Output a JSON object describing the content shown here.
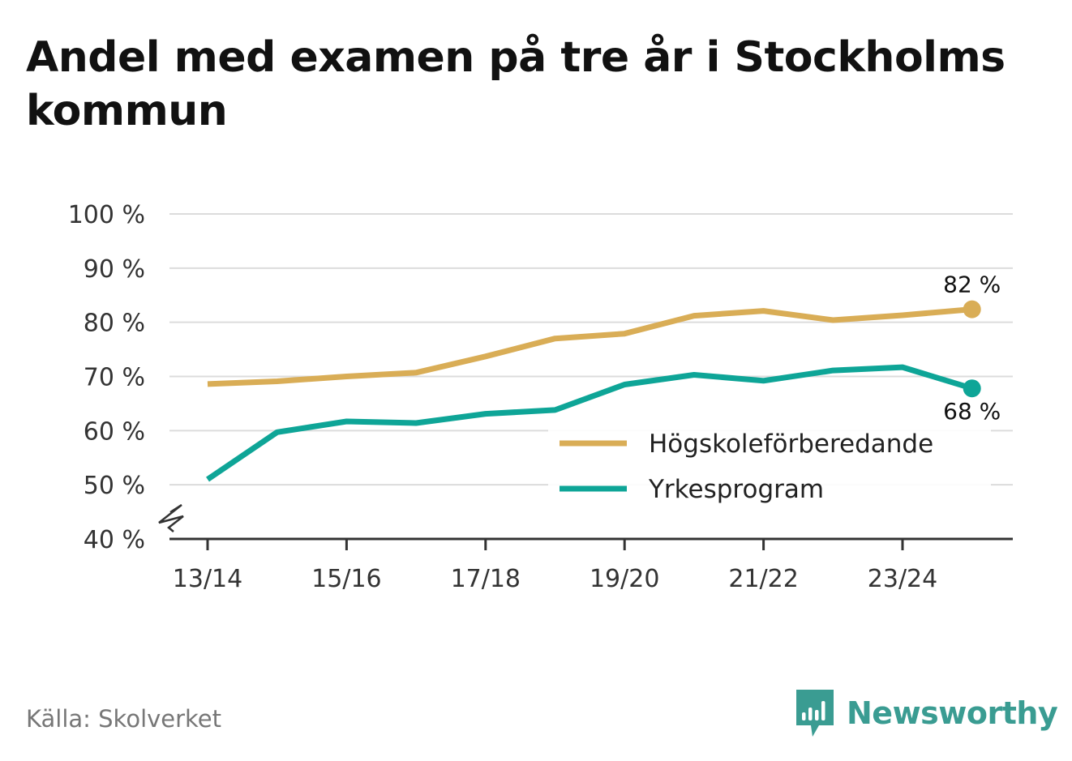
{
  "title": "Andel med examen på tre år i Stockholms kommun",
  "source": "Källa: Skolverket",
  "brand": {
    "name": "Newsworthy",
    "icon": "newsworthy-logo-icon",
    "color": "#3a9c92"
  },
  "chart_data": {
    "type": "line",
    "title": "Andel med examen på tre år i Stockholms kommun",
    "xlabel": "",
    "ylabel": "",
    "ylim": [
      40,
      100
    ],
    "y_axis_break": true,
    "yticks": [
      "40 %",
      "50 %",
      "60 %",
      "70 %",
      "80 %",
      "90 %",
      "100 %"
    ],
    "x": [
      "13/14",
      "14/15",
      "15/16",
      "16/17",
      "17/18",
      "18/19",
      "19/20",
      "20/21",
      "21/22",
      "22/23",
      "23/24",
      "24/25"
    ],
    "xtick_labels": [
      "13/14",
      "15/16",
      "17/18",
      "19/20",
      "21/22",
      "23/24"
    ],
    "grid": true,
    "legend_position": "bottom-right",
    "series": [
      {
        "name": "Högskoleförberedande",
        "color": "#d9ad56",
        "values": [
          68.6,
          69.1,
          70.0,
          70.7,
          73.7,
          77.0,
          77.9,
          81.2,
          82.1,
          80.4,
          81.3,
          82.4
        ],
        "end_label": "82 %"
      },
      {
        "name": "Yrkesprogram",
        "color": "#0ea597",
        "values": [
          51.0,
          59.7,
          61.7,
          61.4,
          63.1,
          63.8,
          68.5,
          70.3,
          69.2,
          71.1,
          71.7,
          67.8
        ],
        "end_label": "68 %"
      }
    ]
  }
}
